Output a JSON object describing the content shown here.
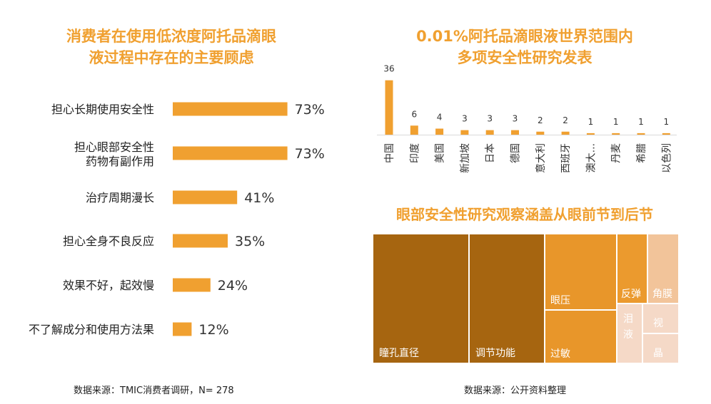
{
  "left_title": "消费者在使用低浓度阿托品滴眼\n液过程中存在的主要顾虑",
  "right_title": "0.01%阿托品滴眼液世界范围内\n多项安全性研究发表",
  "tree_title": "眼部安全性研究观察涵盖从眼前节到后节",
  "source_left": "数据来源：TMIC消费者调研，N= 278",
  "source_right": "数据来源：公开资料整理",
  "colors": {
    "accent": "#f0a030",
    "bar": "#f0a030",
    "tree_dark": "#a66510",
    "tree_mid": "#e8962a",
    "tree_light": "#f2c49a",
    "tree_pale": "#f5d9c7"
  },
  "chart_data": [
    {
      "type": "bar",
      "orientation": "horizontal",
      "title": "消费者在使用低浓度阿托品滴眼液过程中存在的主要顾虑",
      "categories": [
        "担心长期使用安全性",
        "担心眼部安全性药物有副作用",
        "治疗周期漫长",
        "担心全身不良反应",
        "效果不好，起效慢",
        "不了解成分和使用方法果"
      ],
      "category_lines": [
        [
          "担心长期使用安全性"
        ],
        [
          "担心眼部安全性",
          "药物有副作用"
        ],
        [
          "治疗周期漫长"
        ],
        [
          "担心全身不良反应"
        ],
        [
          "效果不好，起效慢"
        ],
        [
          "不了解成分和使用方法果"
        ]
      ],
      "values": [
        73,
        73,
        41,
        35,
        24,
        12
      ],
      "value_labels": [
        "73%",
        "73%",
        "41%",
        "35%",
        "24%",
        "12%"
      ],
      "unit": "%"
    },
    {
      "type": "bar",
      "orientation": "vertical",
      "title": "0.01%阿托品滴眼液世界范围内多项安全性研究发表",
      "categories": [
        "中国",
        "印度",
        "美国",
        "新加坡",
        "日本",
        "德国",
        "意大利",
        "西班牙",
        "澳大...",
        "丹麦",
        "希腊",
        "以色列"
      ],
      "values": [
        36,
        6,
        4,
        3,
        3,
        3,
        2,
        2,
        1,
        1,
        1,
        1
      ],
      "value_labels": [
        "36",
        "6",
        "4",
        "3",
        "3",
        "3",
        "2",
        "2",
        "1",
        "1",
        "1",
        "1"
      ]
    },
    {
      "type": "treemap",
      "title": "眼部安全性研究观察涵盖从眼前节到后节",
      "items": [
        {
          "label": "瞳孔直径",
          "color": "#a66510"
        },
        {
          "label": "调节功能",
          "color": "#a66510"
        },
        {
          "label": "眼压",
          "color": "#e8962a"
        },
        {
          "label": "过敏",
          "color": "#e8962a"
        },
        {
          "label": "反弹",
          "color": "#eb9a2e"
        },
        {
          "label": "角膜",
          "color": "#f2c49a"
        },
        {
          "label": "泪\n液",
          "color": "#f5d9c7"
        },
        {
          "label": "视",
          "color": "#f5d9c7"
        },
        {
          "label": "晶",
          "color": "#f5d9c7"
        }
      ]
    }
  ]
}
